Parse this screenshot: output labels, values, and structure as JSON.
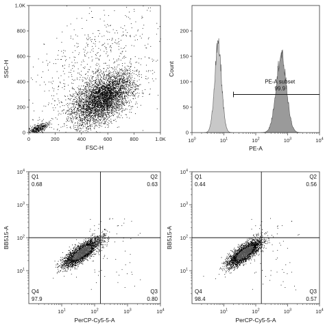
{
  "chart_data": [
    {
      "type": "scatter",
      "subtype": "density-dot-plot",
      "xlabel": "FSC-H",
      "ylabel": "SSC-H",
      "xlim": [
        0,
        1000
      ],
      "ylim": [
        0,
        1000
      ],
      "xticks": [
        "0",
        "200",
        "400",
        "600",
        "800",
        "1.0K"
      ],
      "yticks": [
        "0",
        "200",
        "400",
        "600",
        "800",
        "1.0K"
      ],
      "clusters": [
        {
          "center": [
            560,
            270
          ],
          "spread": [
            110,
            90
          ],
          "weight": 0.78
        },
        {
          "center": [
            60,
            25
          ],
          "spread": [
            40,
            18
          ],
          "weight": 0.08
        },
        {
          "center": [
            500,
            500
          ],
          "spread": [
            280,
            250
          ],
          "weight": 0.14
        }
      ],
      "dot_color": "#000000"
    },
    {
      "type": "area",
      "subtype": "histogram",
      "xlabel": "PE-A",
      "ylabel": "Count",
      "xscale": "log",
      "xlim": [
        1,
        10000
      ],
      "ylim": [
        0,
        250
      ],
      "yticks": [
        "0",
        "50",
        "100",
        "150",
        "200"
      ],
      "xticks": [
        "10^0",
        "10^1",
        "10^2",
        "10^3",
        "10^4"
      ],
      "peaks": [
        {
          "center_log10": 0.82,
          "sd_log10": 0.11,
          "height": 170
        },
        {
          "center_log10": 2.8,
          "sd_log10": 0.16,
          "height": 152
        }
      ],
      "fill_colors": {
        "negative": "#c8c8c8",
        "positive": "#9a9a9a"
      },
      "gate": {
        "label": "PE-A subset",
        "value": "99.9",
        "from": 20,
        "to": 10000,
        "y": 75
      }
    },
    {
      "type": "scatter",
      "subtype": "quadrant-dot-plot",
      "xlabel": "PerCP-Cy5-5-A",
      "ylabel": "BB515-A",
      "xscale": "log",
      "yscale": "log",
      "xlim": [
        1,
        10000
      ],
      "ylim": [
        1,
        10000
      ],
      "xticks": [
        "10^1",
        "10^2",
        "10^3",
        "10^4"
      ],
      "yticks": [
        "10^1",
        "10^2",
        "10^3",
        "10^4"
      ],
      "quadrant_divider": {
        "x": 150,
        "y": 100
      },
      "quadrants": {
        "Q1": {
          "label": "Q1",
          "value": "0.68"
        },
        "Q2": {
          "label": "Q2",
          "value": "0.63"
        },
        "Q3": {
          "label": "Q3",
          "value": "0.80"
        },
        "Q4": {
          "label": "Q4",
          "value": "97.9"
        }
      },
      "cluster": {
        "center_log10": [
          1.6,
          1.55
        ],
        "spread_log10": [
          0.28,
          0.22
        ],
        "correlation": 0.8
      }
    },
    {
      "type": "scatter",
      "subtype": "quadrant-dot-plot",
      "xlabel": "PerCP-Cy5-5-A",
      "ylabel": "BB515-A",
      "xscale": "log",
      "yscale": "log",
      "xlim": [
        1,
        10000
      ],
      "ylim": [
        1,
        10000
      ],
      "xticks": [
        "10^1",
        "10^2",
        "10^3",
        "10^4"
      ],
      "yticks": [
        "10^1",
        "10^2",
        "10^3",
        "10^4"
      ],
      "quadrant_divider": {
        "x": 150,
        "y": 100
      },
      "quadrants": {
        "Q1": {
          "label": "Q1",
          "value": "0.44"
        },
        "Q2": {
          "label": "Q2",
          "value": "0.56"
        },
        "Q3": {
          "label": "Q3",
          "value": "0.57"
        },
        "Q4": {
          "label": "Q4",
          "value": "98.4"
        }
      },
      "cluster": {
        "center_log10": [
          1.65,
          1.55
        ],
        "spread_log10": [
          0.27,
          0.21
        ],
        "correlation": 0.8
      }
    }
  ]
}
